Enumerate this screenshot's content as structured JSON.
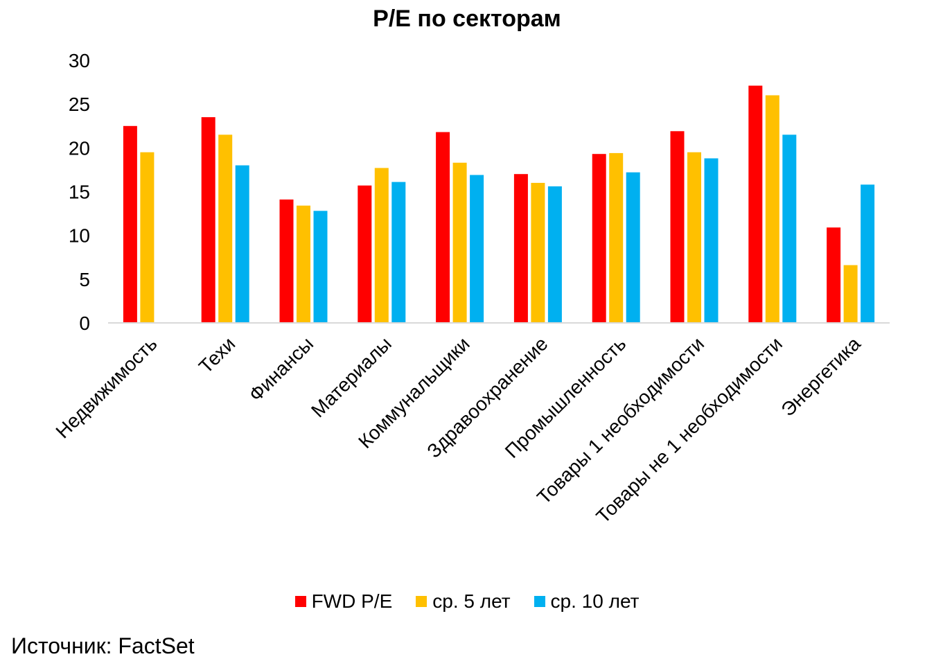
{
  "chart_data": {
    "type": "bar",
    "title": "P/E по секторам",
    "xlabel": "",
    "ylabel": "",
    "ylim": [
      0,
      30
    ],
    "yticks": [
      0,
      5,
      10,
      15,
      20,
      25,
      30
    ],
    "grid": false,
    "legend_position": "bottom",
    "categories": [
      "Недвижимость",
      "Техи",
      "Финансы",
      "Материалы",
      "Коммунальщики",
      "Здравоохранение",
      "Промышленность",
      "Товары 1 необходимости",
      "Товары не 1 необходимости",
      "Энергетика"
    ],
    "series": [
      {
        "name": "FWD P/E",
        "color": "#ff0000",
        "values": [
          22.5,
          23.5,
          14.1,
          15.7,
          21.8,
          17.0,
          19.3,
          21.9,
          27.1,
          10.9
        ]
      },
      {
        "name": "ср. 5 лет",
        "color": "#ffc000",
        "values": [
          19.5,
          21.5,
          13.4,
          17.7,
          18.3,
          16.0,
          19.4,
          19.5,
          26.0,
          6.6
        ]
      },
      {
        "name": "ср. 10 лет",
        "color": "#00b0f0",
        "values": [
          null,
          18.0,
          12.8,
          16.1,
          16.9,
          15.6,
          17.2,
          18.8,
          21.5,
          15.8
        ]
      }
    ]
  },
  "source_text": "Источник: FactSet"
}
